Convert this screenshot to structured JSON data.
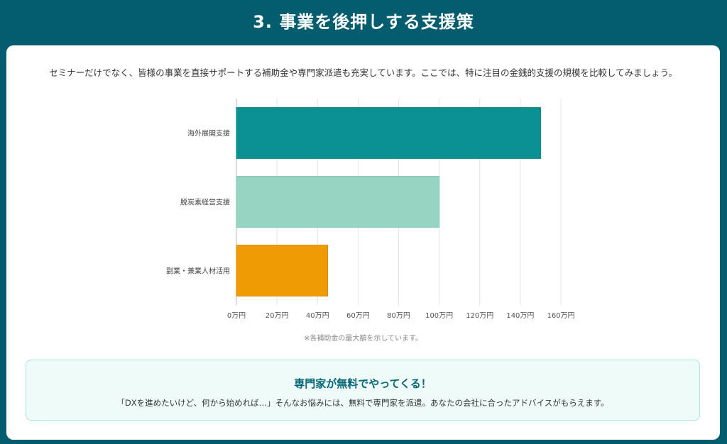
{
  "header": {
    "title": "3. 事業を後押しする支援策"
  },
  "intro_text": "セミナーだけでなく、皆様の事業を直接サポートする補助金や専門家派遣も充実しています。ここでは、特に注目の金銭的支援の規模を比較してみましょう。",
  "chart_data": {
    "type": "bar",
    "orientation": "horizontal",
    "categories": [
      "海外展開支援",
      "脱炭素経営支援",
      "副業・兼業人材活用"
    ],
    "values": [
      150,
      100,
      45
    ],
    "unit": "万円",
    "xlim": [
      0,
      160
    ],
    "xticks": [
      "0万円",
      "20万円",
      "40万円",
      "60万円",
      "80万円",
      "100万円",
      "120万円",
      "140万円",
      "160万円"
    ],
    "colors": [
      "#0b9193",
      "#97d4c1",
      "#ef9b03"
    ],
    "border_colors": [
      "#0a7f81",
      "#80c2b0",
      "#d98a00"
    ],
    "grid": true,
    "legend": "none"
  },
  "chart_note": "※各補助金の最大額を示しています。",
  "callout": {
    "title": "専門家が無料でやってくる！",
    "text": "「DXを進めたいけど、何から始めれば…」そんなお悩みには、無料で専門家を派遣。あなたの会社に合ったアドバイスがもらえます。"
  }
}
